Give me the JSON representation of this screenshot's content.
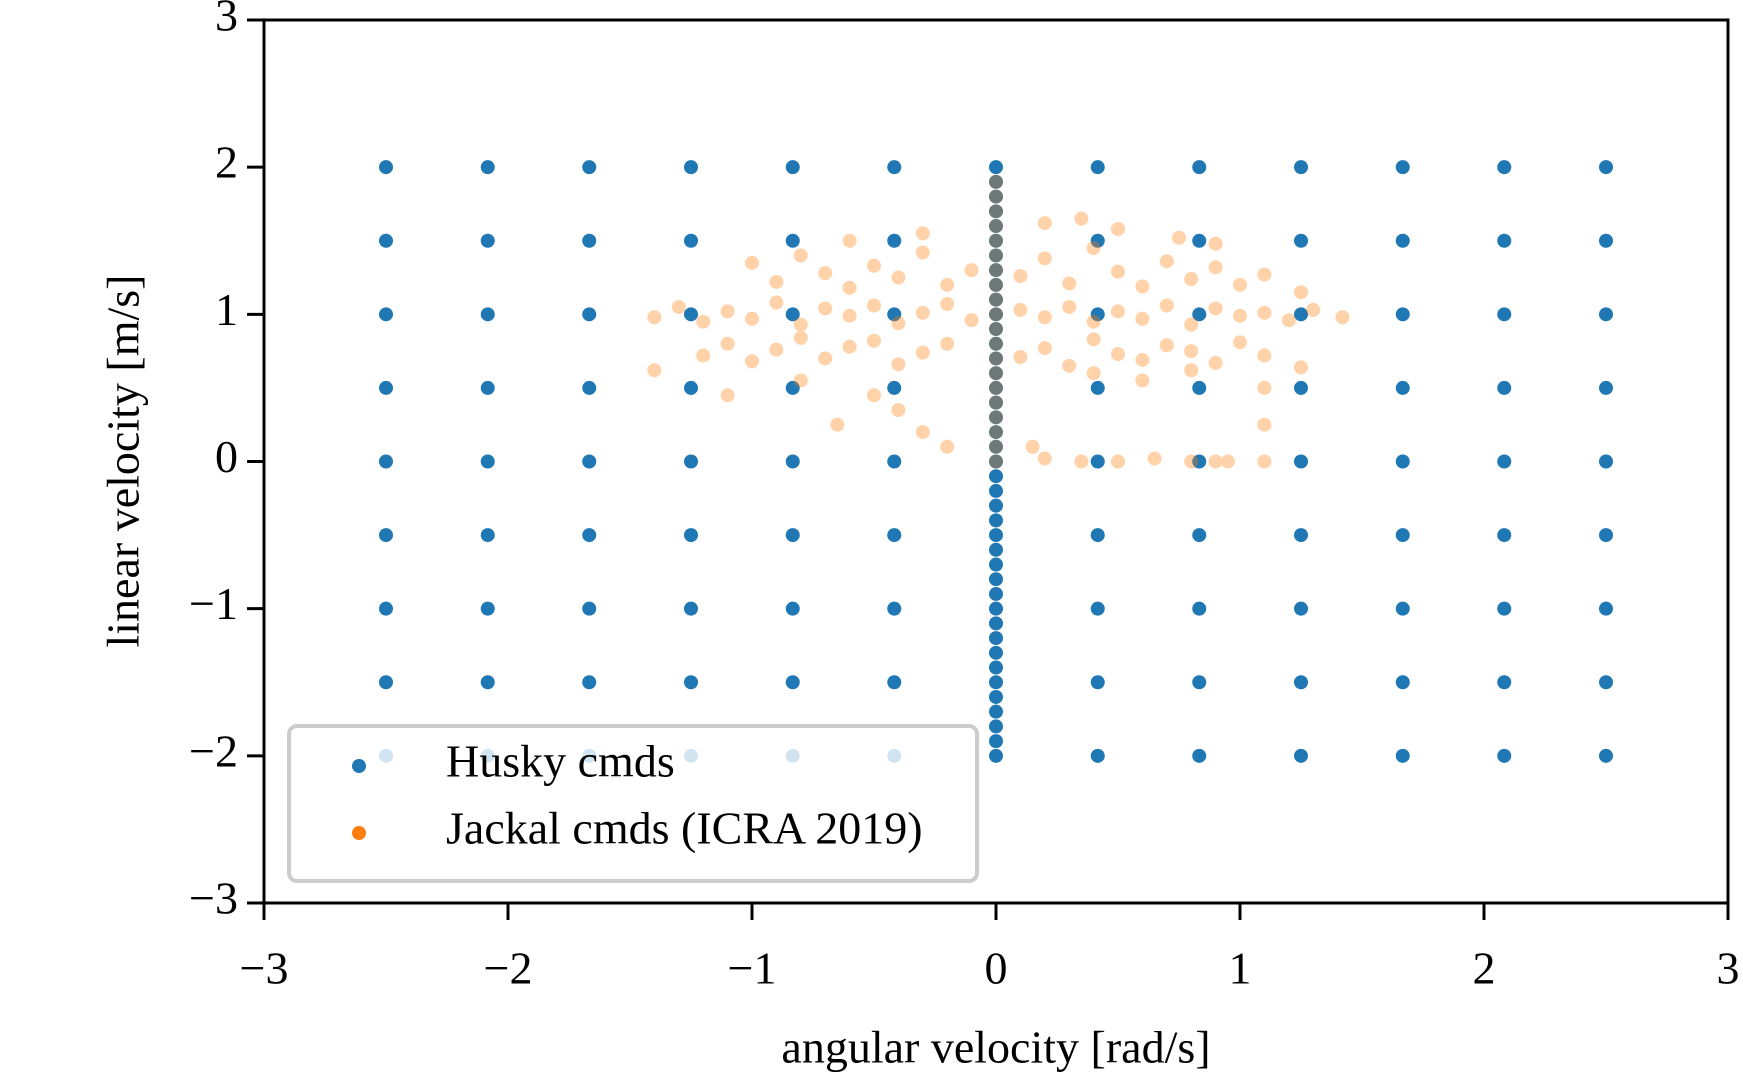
{
  "chart_data": {
    "type": "scatter",
    "xlabel": "angular velocity [rad/s]",
    "ylabel": "linear velocity [m/s]",
    "xlim": [
      -3,
      3
    ],
    "ylim": [
      -3,
      3
    ],
    "xticks": [
      {
        "value": -3,
        "label": "−3"
      },
      {
        "value": -2,
        "label": "−2"
      },
      {
        "value": -1,
        "label": "−1"
      },
      0,
      1,
      2,
      3
    ],
    "yticks": [
      {
        "value": -3,
        "label": "−3"
      },
      {
        "value": -2,
        "label": "−2"
      },
      {
        "value": -1,
        "label": "−1"
      },
      0,
      1,
      2,
      3
    ],
    "grid": false,
    "legend": "lower left",
    "series": [
      {
        "name": "Husky cmds",
        "color": "#1f77b4",
        "alpha": 1,
        "x": [
          -2.5,
          -2.083,
          -1.667,
          -1.25,
          -0.833,
          -0.417,
          0.417,
          0.833,
          1.25,
          1.667,
          2.083,
          2.5,
          -2.5,
          -2.083,
          -1.667,
          -1.25,
          -0.833,
          -0.417,
          0.417,
          0.833,
          1.25,
          1.667,
          2.083,
          2.5,
          -2.5,
          -2.083,
          -1.667,
          -1.25,
          -0.833,
          -0.417,
          0.417,
          0.833,
          1.25,
          1.667,
          2.083,
          2.5,
          -2.5,
          -2.083,
          -1.667,
          -1.25,
          -0.833,
          -0.417,
          0.417,
          0.833,
          1.25,
          1.667,
          2.083,
          2.5,
          -2.5,
          -2.083,
          -1.667,
          -1.25,
          -0.833,
          -0.417,
          0.417,
          0.833,
          1.25,
          1.667,
          2.083,
          2.5,
          -2.5,
          -2.083,
          -1.667,
          -1.25,
          -0.833,
          -0.417,
          0.417,
          0.833,
          1.25,
          1.667,
          2.083,
          2.5,
          -2.5,
          -2.083,
          -1.667,
          -1.25,
          -0.833,
          -0.417,
          0.417,
          0.833,
          1.25,
          1.667,
          2.083,
          2.5,
          -2.5,
          -2.083,
          -1.667,
          -1.25,
          -0.833,
          -0.417,
          0.417,
          0.833,
          1.25,
          1.667,
          2.083,
          2.5,
          -2.5,
          -2.083,
          -1.667,
          -1.25,
          -0.833,
          -0.417,
          0.417,
          0.833,
          1.25,
          1.667,
          2.083,
          2.5,
          0,
          0,
          0,
          0,
          0,
          0,
          0,
          0,
          0,
          0,
          0,
          0,
          0,
          0,
          0,
          0,
          0,
          0,
          0,
          0,
          0,
          0,
          0,
          0,
          0,
          0,
          0,
          0,
          0,
          0,
          0,
          0,
          0,
          0,
          0,
          0,
          0,
          0,
          0,
          0,
          0
        ],
        "values": [
          2,
          2,
          2,
          2,
          2,
          2,
          2,
          2,
          2,
          2,
          2,
          2,
          1.5,
          1.5,
          1.5,
          1.5,
          1.5,
          1.5,
          1.5,
          1.5,
          1.5,
          1.5,
          1.5,
          1.5,
          1,
          1,
          1,
          1,
          1,
          1,
          1,
          1,
          1,
          1,
          1,
          1,
          0.5,
          0.5,
          0.5,
          0.5,
          0.5,
          0.5,
          0.5,
          0.5,
          0.5,
          0.5,
          0.5,
          0.5,
          0,
          0,
          0,
          0,
          0,
          0,
          0,
          0,
          0,
          0,
          0,
          0,
          -0.5,
          -0.5,
          -0.5,
          -0.5,
          -0.5,
          -0.5,
          -0.5,
          -0.5,
          -0.5,
          -0.5,
          -0.5,
          -0.5,
          -1,
          -1,
          -1,
          -1,
          -1,
          -1,
          -1,
          -1,
          -1,
          -1,
          -1,
          -1,
          -1.5,
          -1.5,
          -1.5,
          -1.5,
          -1.5,
          -1.5,
          -1.5,
          -1.5,
          -1.5,
          -1.5,
          -1.5,
          -1.5,
          -2,
          -2,
          -2,
          -2,
          -2,
          -2,
          -2,
          -2,
          -2,
          -2,
          -2,
          -2,
          -2,
          -1.9,
          -1.8,
          -1.7,
          -1.6,
          -1.5,
          -1.4,
          -1.3,
          -1.2,
          -1.1,
          -1,
          -0.9,
          -0.8,
          -0.7,
          -0.6,
          -0.5,
          -0.4,
          -0.3,
          -0.2,
          -0.1,
          0,
          0.1,
          0.2,
          0.3,
          0.4,
          0.5,
          0.6,
          0.7,
          0.8,
          0.9,
          1,
          1.1,
          1.2,
          1.3,
          1.4,
          1.5,
          1.6,
          1.7,
          1.8,
          1.9,
          2
        ]
      },
      {
        "name": "Jackal cmds (ICRA 2019)",
        "color": "#ff7f0e",
        "alpha": 0.35,
        "x": [
          -1.4,
          -1.3,
          -1.2,
          -1.1,
          -1.0,
          -0.9,
          -0.8,
          -0.7,
          -0.6,
          -0.5,
          -0.4,
          -0.3,
          -0.2,
          -0.1,
          0.1,
          0.2,
          0.3,
          0.4,
          0.5,
          0.6,
          0.7,
          0.8,
          0.9,
          1.0,
          1.1,
          1.2,
          1.3,
          1.42,
          -1.0,
          -0.9,
          -0.8,
          -0.7,
          -0.6,
          -0.5,
          -0.4,
          -0.3,
          -0.2,
          -0.1,
          0.1,
          0.2,
          0.3,
          0.4,
          0.5,
          0.6,
          0.7,
          0.8,
          0.9,
          1.0,
          1.1,
          1.25,
          -1.4,
          -1.2,
          -1.1,
          -1.0,
          -0.9,
          -0.8,
          -0.7,
          -0.6,
          -0.5,
          -0.4,
          -0.3,
          -0.2,
          0.1,
          0.2,
          0.3,
          0.4,
          0.5,
          0.6,
          0.7,
          0.8,
          0.9,
          1.0,
          1.1,
          1.25,
          -1.1,
          -0.8,
          -0.65,
          -0.5,
          -0.4,
          -0.3,
          -0.2,
          0.4,
          0.6,
          0.8,
          -0.6,
          -0.3,
          0.2,
          0.35,
          0.5,
          0.75,
          0.9,
          0,
          0,
          0,
          0,
          0,
          0,
          0,
          0,
          0,
          0,
          0,
          0,
          0,
          0,
          0,
          0,
          0,
          0,
          0,
          0,
          0.2,
          0.35,
          0.5,
          0.65,
          0.8,
          0.9,
          0.95,
          1.1,
          1.1,
          1.1,
          0.15
        ],
        "values": [
          0.98,
          1.05,
          0.95,
          1.02,
          0.97,
          1.08,
          0.93,
          1.04,
          0.99,
          1.06,
          0.94,
          1.01,
          1.07,
          0.96,
          1.03,
          0.98,
          1.05,
          0.95,
          1.02,
          0.97,
          1.06,
          0.93,
          1.04,
          0.99,
          1.01,
          0.96,
          1.03,
          0.98,
          1.35,
          1.22,
          1.4,
          1.28,
          1.18,
          1.33,
          1.25,
          1.42,
          1.2,
          1.3,
          1.26,
          1.38,
          1.21,
          1.45,
          1.29,
          1.19,
          1.36,
          1.24,
          1.32,
          1.2,
          1.27,
          1.15,
          0.62,
          0.72,
          0.8,
          0.68,
          0.76,
          0.84,
          0.7,
          0.78,
          0.82,
          0.66,
          0.74,
          0.8,
          0.71,
          0.77,
          0.65,
          0.83,
          0.73,
          0.69,
          0.79,
          0.75,
          0.67,
          0.81,
          0.72,
          0.64,
          0.45,
          0.55,
          0.25,
          0.45,
          0.35,
          0.2,
          0.1,
          0.6,
          0.55,
          0.62,
          1.5,
          1.55,
          1.62,
          1.65,
          1.58,
          1.52,
          1.48,
          0,
          0.1,
          0.2,
          0.3,
          0.4,
          0.5,
          0.6,
          0.7,
          0.8,
          0.9,
          1,
          1.1,
          1.2,
          1.3,
          1.4,
          1.5,
          1.6,
          1.7,
          1.8,
          1.9,
          0.02,
          0,
          0,
          0.02,
          0,
          0,
          0,
          0,
          0.25,
          0.5,
          0.1
        ]
      }
    ]
  }
}
